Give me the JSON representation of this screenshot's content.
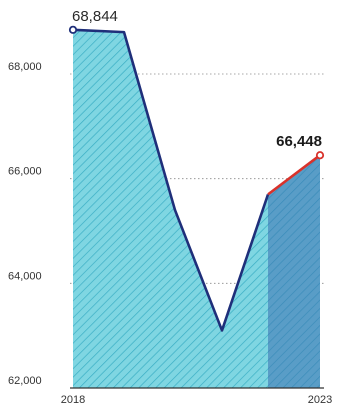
{
  "chart_data": {
    "type": "area",
    "x": [
      "2018",
      "2019",
      "2020",
      "2021",
      "2022",
      "2023"
    ],
    "values": [
      68844,
      68800,
      65400,
      63100,
      65700,
      66448
    ],
    "ylim": [
      62000,
      69000
    ],
    "yticks": [
      62000,
      64000,
      66000,
      68000
    ],
    "ytick_labels": [
      "62,000",
      "64,000",
      "66,000",
      "68,000"
    ],
    "x_tick_labels": [
      {
        "x": "2018",
        "label": "2018"
      },
      {
        "x": "2023",
        "label": "2023"
      }
    ],
    "annotations": [
      {
        "x": "2018",
        "value": 68844,
        "text": "68,844"
      },
      {
        "x": "2023",
        "value": 66448,
        "text": "66,448"
      }
    ],
    "grid": true,
    "highlight_last_segment": true
  },
  "colors": {
    "area_fill": "#7fd6e2",
    "hatch": "#3aaec4",
    "line": "#1f2f7a",
    "highlight_line": "#d9322b",
    "highlight_band": "#3b6fb0",
    "grid": "#8a8a8a",
    "axis": "#333333"
  }
}
